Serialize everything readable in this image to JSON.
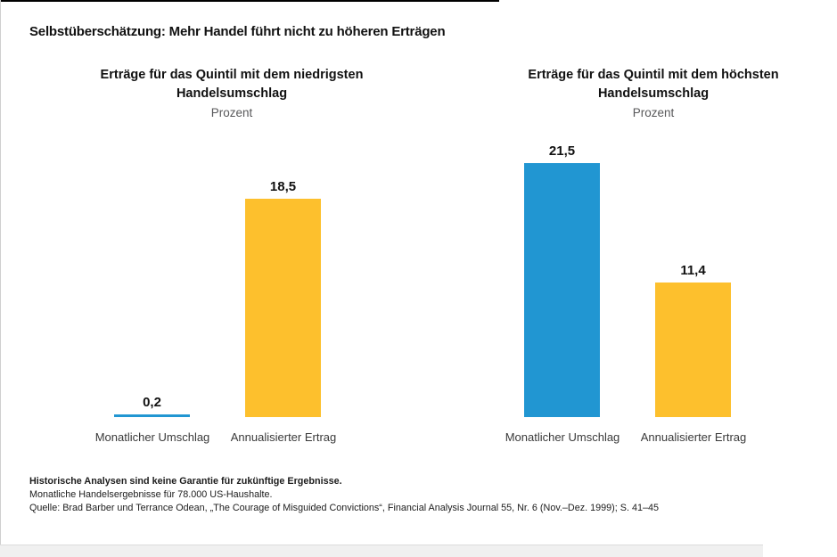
{
  "page": {
    "title": "Selbstüberschätzung: Mehr Handel führt nicht zu höheren Erträgen"
  },
  "colors": {
    "blue": "#2196D2",
    "yellow": "#FDC02D",
    "title_text": "#111111",
    "subtitle_text": "#58585A"
  },
  "chart_data": [
    {
      "type": "bar",
      "title": "Erträge für das Quintil mit dem niedrigsten Handelsumschlag",
      "subtitle": "Prozent",
      "categories": [
        "Monatlicher Umschlag",
        "Annualisierter Ertrag"
      ],
      "values": [
        0.2,
        18.5
      ],
      "value_labels": [
        "0,2",
        "18,5"
      ],
      "bar_colors": [
        "#2196D2",
        "#FDC02D"
      ],
      "ylabel": "Prozent",
      "ylim": [
        0,
        22.5
      ],
      "grid": false,
      "legend": "none",
      "axis_lines": false
    },
    {
      "type": "bar",
      "title": "Erträge für das Quintil mit dem höchsten Handelsumschlag",
      "subtitle": "Prozent",
      "categories": [
        "Monatlicher Umschlag",
        "Annualisierter Ertrag"
      ],
      "values": [
        21.5,
        11.4
      ],
      "value_labels": [
        "21,5",
        "11,4"
      ],
      "bar_colors": [
        "#2196D2",
        "#FDC02D"
      ],
      "ylabel": "Prozent",
      "ylim": [
        0,
        22.5
      ],
      "grid": false,
      "legend": "none",
      "axis_lines": false
    }
  ],
  "footnotes": {
    "line1": "Historische Analysen sind keine Garantie für zukünftige Ergebnisse.",
    "line2": "Monatliche Handelsergebnisse für 78.000 US-Haushalte.",
    "line3": "Quelle: Brad Barber und Terrance Odean, „The Courage of Misguided Convictions“, Financial Analysis Journal 55, Nr. 6 (Nov.–Dez. 1999); S. 41–45"
  }
}
